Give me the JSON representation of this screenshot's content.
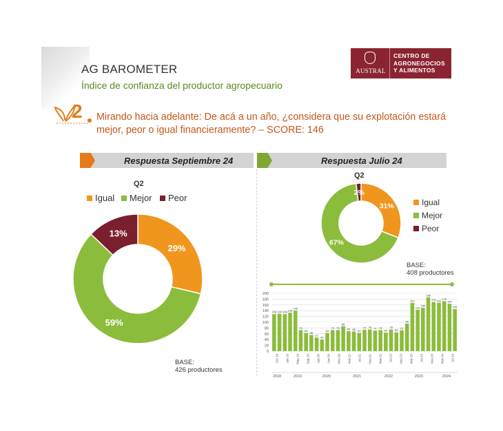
{
  "header": {
    "title": "AG BAROMETER",
    "subtitle": "Índice de confianza del productor agropecuario"
  },
  "logo": {
    "university": "AUSTRAL",
    "lines": [
      "CENTRO DE",
      "AGRONEGOCIOS",
      "Y ALIMENTOS"
    ]
  },
  "question": {
    "number": "2",
    "text": "Mirando hacia adelante: De acá a un año, ¿considera que su explotación estará mejor, peor o igual financieramente? – SCORE: 146"
  },
  "colors": {
    "igual": "#f0961e",
    "mejor": "#8cbc3c",
    "peor": "#7a1f2e",
    "bar": "#8cbc3c"
  },
  "chart_data": [
    {
      "type": "pie",
      "panel_label": "Respuesta Septiembre 24",
      "title": "Q2",
      "categories": [
        "Igual",
        "Mejor",
        "Peor"
      ],
      "values": [
        29,
        59,
        13
      ],
      "labels": [
        "29%",
        "59%",
        "13%"
      ],
      "legend": "top",
      "base": [
        "BASE:",
        "426 productores"
      ]
    },
    {
      "type": "pie",
      "panel_label": "Respuesta Julio 24",
      "title": "Q2",
      "categories": [
        "Igual",
        "Mejor",
        "Peor"
      ],
      "values": [
        31,
        67,
        2
      ],
      "labels": [
        "31%",
        "67%",
        "2%"
      ],
      "legend": "right",
      "base": [
        "BASE:",
        "408 productores"
      ]
    },
    {
      "type": "bar",
      "ylim": [
        0,
        200
      ],
      "yticks": [
        "0",
        "20",
        "40",
        "60",
        "80",
        "100",
        "120",
        "140",
        "160",
        "180",
        "200"
      ],
      "values": [
        128,
        129,
        128,
        133,
        140,
        73,
        63,
        56,
        47,
        40,
        63,
        73,
        73,
        86,
        69,
        68,
        63,
        74,
        75,
        71,
        73,
        64,
        75,
        65,
        72,
        95,
        167,
        143,
        150,
        186,
        170,
        167,
        173,
        164,
        146
      ],
      "value_labels": [
        "128",
        "129",
        "128",
        "133",
        "140",
        "73",
        "63",
        "56",
        "47",
        "40",
        "63",
        "73",
        "73",
        "86",
        "69",
        "68",
        "63",
        "74",
        "75",
        "71",
        "73",
        "64",
        "75",
        "65",
        "72",
        "95",
        "167",
        "143",
        "150",
        "186",
        "170",
        "167",
        "173",
        "164",
        "146"
      ],
      "month_labels": [
        "Oct-18",
        "Jan-19",
        "May-19",
        "Sep-19",
        "Jan-20",
        "Jun-20",
        "Nov-20",
        "Mar-21",
        "Jul-21",
        "Nov-21",
        "Mar-22",
        "Jul-22",
        "Nov-22",
        "Mar-23",
        "Jul-23",
        "Nov-23",
        "Mar-24",
        "Jul-24"
      ],
      "year_labels": [
        "2018",
        "2019",
        "2020",
        "2021",
        "2022",
        "2023",
        "2024"
      ],
      "grid": true
    }
  ]
}
